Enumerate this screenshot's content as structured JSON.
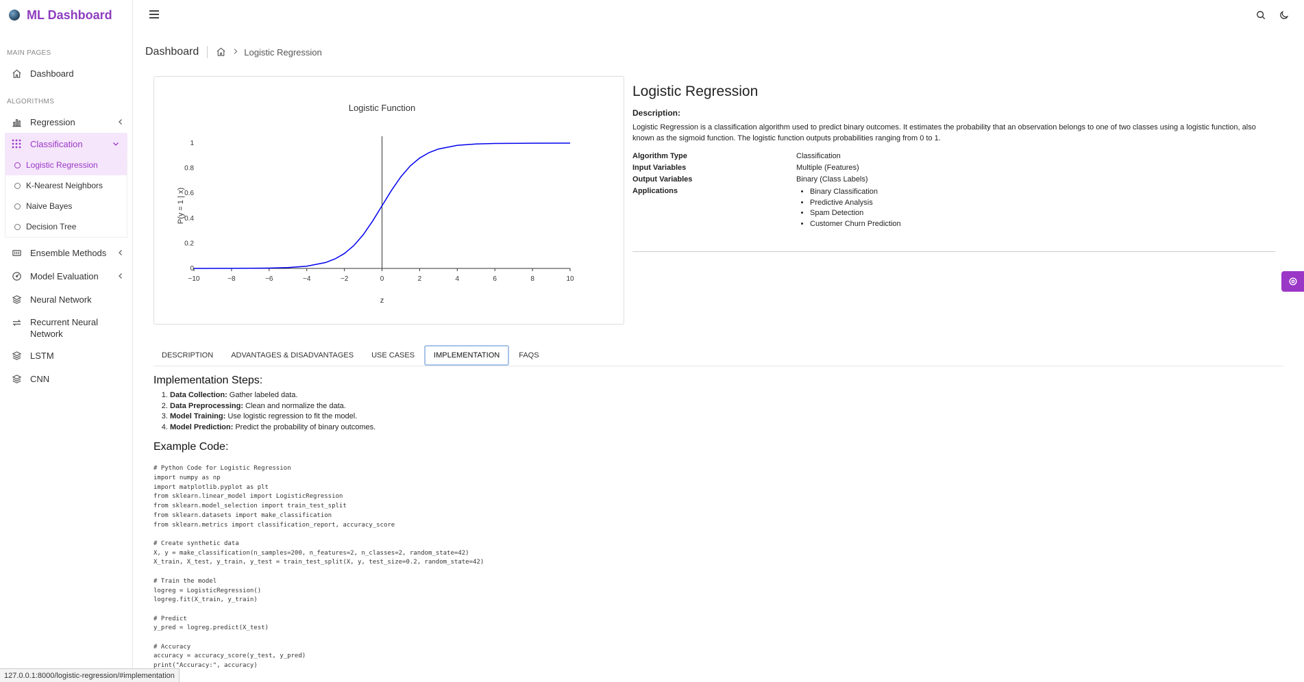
{
  "app": {
    "title": "ML Dashboard"
  },
  "sidebar": {
    "sections": [
      {
        "label": "MAIN PAGES"
      },
      {
        "label": "ALGORITHMS"
      }
    ],
    "items": {
      "dashboard": "Dashboard",
      "regression": "Regression",
      "classification": "Classification",
      "ensemble": "Ensemble Methods",
      "model_eval": "Model Evaluation",
      "neural": "Neural Network",
      "rnn": "Recurrent Neural Network",
      "lstm": "LSTM",
      "cnn": "CNN"
    },
    "classification_sub": [
      "Logistic Regression",
      "K-Nearest Neighbors",
      "Naive Bayes",
      "Decision Tree"
    ]
  },
  "breadcrumb": {
    "page_title": "Dashboard",
    "current": "Logistic Regression"
  },
  "chart_data": {
    "type": "line",
    "title": "Logistic Function",
    "xlabel": "z",
    "ylabel": "P(y = 1 | x)",
    "xlim": [
      -10,
      10
    ],
    "ylim": [
      0,
      1
    ],
    "xticks": [
      -10,
      -8,
      -6,
      -4,
      -2,
      0,
      2,
      4,
      6,
      8,
      10
    ],
    "xtick_labels": [
      "−10",
      "−8",
      "−6",
      "−4",
      "−2",
      "0",
      "2",
      "4",
      "6",
      "8",
      "10"
    ],
    "yticks": [
      0,
      0.2,
      0.4,
      0.6,
      0.8,
      1
    ],
    "ytick_labels": [
      "0",
      "0.2",
      "0.4",
      "0.6",
      "0.8",
      "1"
    ],
    "series": [
      {
        "color": "#0000ee",
        "x": [
          -10,
          -8,
          -6,
          -5,
          -4,
          -3,
          -2.5,
          -2,
          -1.5,
          -1,
          -0.5,
          0,
          0.5,
          1,
          1.5,
          2,
          2.5,
          3,
          4,
          5,
          6,
          8,
          10
        ],
        "y": [
          5e-05,
          0.0003,
          0.0025,
          0.0067,
          0.018,
          0.047,
          0.076,
          0.119,
          0.182,
          0.269,
          0.378,
          0.5,
          0.622,
          0.731,
          0.818,
          0.881,
          0.924,
          0.953,
          0.982,
          0.993,
          0.9975,
          0.9997,
          0.99995
        ]
      }
    ],
    "vline_x": 0
  },
  "info": {
    "title": "Logistic Regression",
    "desc_heading": "Description:",
    "description": "Logistic Regression is a classification algorithm used to predict binary outcomes. It estimates the probability that an observation belongs to one of two classes using a logistic function, also known as the sigmoid function. The logistic function outputs probabilities ranging from 0 to 1.",
    "rows": {
      "type_k": "Algorithm Type",
      "type_v": "Classification",
      "input_k": "Input Variables",
      "input_v": "Multiple (Features)",
      "output_k": "Output Variables",
      "output_v": "Binary (Class Labels)",
      "apps_k": "Applications"
    },
    "applications": [
      "Binary Classification",
      "Predictive Analysis",
      "Spam Detection",
      "Customer Churn Prediction"
    ]
  },
  "tabs": [
    "DESCRIPTION",
    "ADVANTAGES & DISADVANTAGES",
    "USE CASES",
    "IMPLEMENTATION",
    "FAQS"
  ],
  "implementation": {
    "steps_heading": "Implementation Steps:",
    "steps": [
      {
        "bold": "Data Collection:",
        "text": " Gather labeled data."
      },
      {
        "bold": "Data Preprocessing:",
        "text": " Clean and normalize the data."
      },
      {
        "bold": "Model Training:",
        "text": " Use logistic regression to fit the model."
      },
      {
        "bold": "Model Prediction:",
        "text": " Predict the probability of binary outcomes."
      }
    ],
    "code_heading": "Example Code:",
    "code": "# Python Code for Logistic Regression\nimport numpy as np\nimport matplotlib.pyplot as plt\nfrom sklearn.linear_model import LogisticRegression\nfrom sklearn.model_selection import train_test_split\nfrom sklearn.datasets import make_classification\nfrom sklearn.metrics import classification_report, accuracy_score\n\n# Create synthetic data\nX, y = make_classification(n_samples=200, n_features=2, n_classes=2, random_state=42)\nX_train, X_test, y_train, y_test = train_test_split(X, y, test_size=0.2, random_state=42)\n\n# Train the model\nlogreg = LogisticRegression()\nlogreg.fit(X_train, y_train)\n\n# Predict\ny_pred = logreg.predict(X_test)\n\n# Accuracy\naccuracy = accuracy_score(y_test, y_pred)\nprint(\"Accuracy:\", accuracy)"
  },
  "status_url": "127.0.0.1:8000/logistic-regression/#implementation",
  "colors": {
    "accent": "#9b37c6",
    "brand": "#8e3dbf",
    "line": "#0000ee"
  }
}
